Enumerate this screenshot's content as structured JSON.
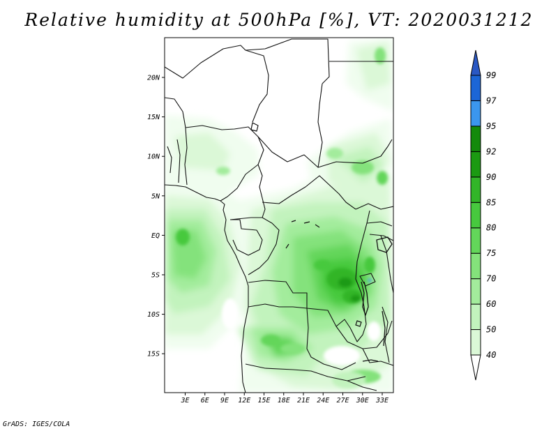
{
  "title": "Relative humidity at 500hPa [%], VT: 2020031212",
  "credit": "GrADS: IGES/COLA",
  "colors": {
    "rh40": "#f0fdef",
    "rh50": "#dbf8d7",
    "rh60": "#c2f3bd",
    "rh70": "#a3ec9c",
    "rh75": "#84e27b",
    "rh80": "#63d65a",
    "rh85": "#47c93e",
    "rh90": "#32b528",
    "rh92": "#1b9a12",
    "rh95": "#138a0b",
    "rh97": "#3b96ee",
    "rh99": "#1c66d6",
    "rh100": "#2a58c4",
    "border": "#111111"
  },
  "map": {
    "lon_labels": [
      "3E",
      "6E",
      "9E",
      "12E",
      "15E",
      "18E",
      "21E",
      "24E",
      "27E",
      "30E",
      "33E"
    ],
    "lat_labels": [
      "20N",
      "15N",
      "10N",
      "5N",
      "EQ",
      "5S",
      "10S",
      "15S"
    ]
  },
  "colorbar": {
    "labels": [
      "40",
      "50",
      "60",
      "70",
      "75",
      "80",
      "85",
      "90",
      "92",
      "95",
      "97",
      "99"
    ]
  }
}
